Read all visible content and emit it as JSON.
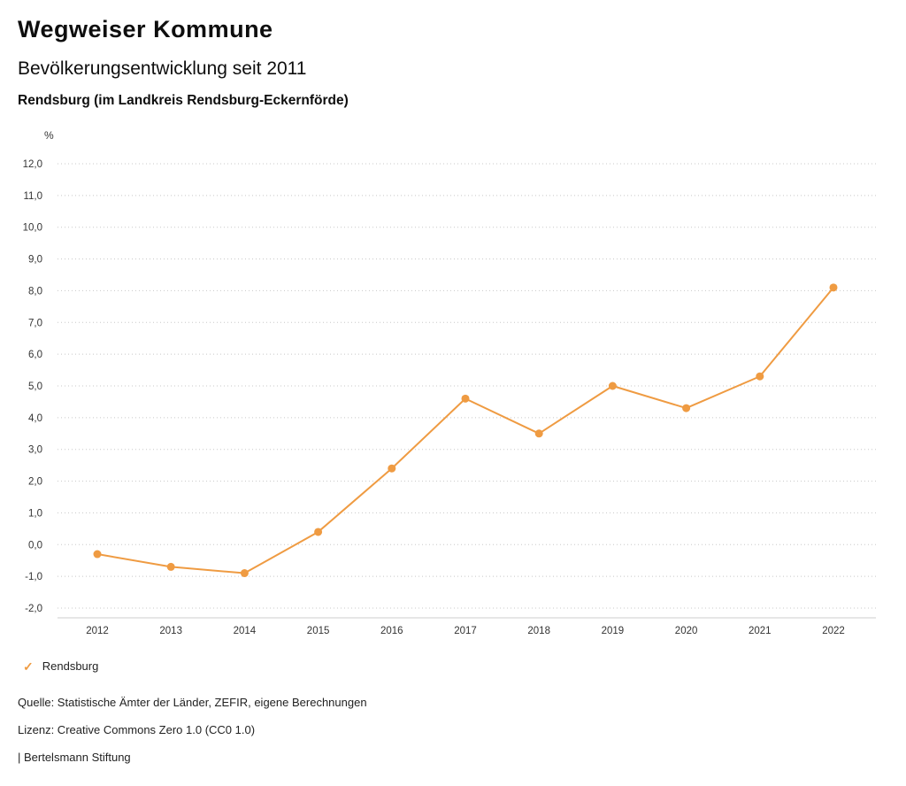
{
  "header": {
    "title": "Wegweiser Kommune",
    "subtitle": "Bevölkerungsentwicklung seit 2011",
    "region": "Rendsburg (im Landkreis Rendsburg-Eckernförde)"
  },
  "chart_data": {
    "type": "line",
    "title": "Bevölkerungsentwicklung seit 2011",
    "subtitle": "Rendsburg (im Landkreis Rendsburg-Eckernförde)",
    "unit_label": "%",
    "xlabel": "",
    "ylabel": "%",
    "x": [
      2012,
      2013,
      2014,
      2015,
      2016,
      2017,
      2018,
      2019,
      2020,
      2021,
      2022
    ],
    "series": [
      {
        "name": "Rendsburg",
        "color": "#ef9b42",
        "values": [
          -0.3,
          -0.7,
          -0.9,
          0.4,
          2.4,
          4.6,
          3.5,
          5.0,
          4.3,
          5.3,
          8.1
        ]
      }
    ],
    "ylim": [
      -2.0,
      12.0
    ],
    "ytick_step": 1.0,
    "ytick_labels": [
      "12,0",
      "11,0",
      "10,0",
      "9,0",
      "8,0",
      "7,0",
      "6,0",
      "5,0",
      "4,0",
      "3,0",
      "2,0",
      "1,0",
      "0,0",
      "-1,0",
      "-2,0"
    ],
    "grid": "horizontal-dotted",
    "grid_color": "#c8c8c8",
    "axis_text_color": "#333333",
    "legend_position": "bottom-left"
  },
  "legend": {
    "items": [
      {
        "label": "Rendsburg",
        "color": "#ef9b42",
        "marker": "check-icon"
      }
    ]
  },
  "footer": {
    "source": "Quelle: Statistische Ämter der Länder, ZEFIR, eigene Berechnungen",
    "license": "Lizenz: Creative Commons Zero 1.0 (CC0 1.0)",
    "attribution": "| Bertelsmann Stiftung"
  }
}
